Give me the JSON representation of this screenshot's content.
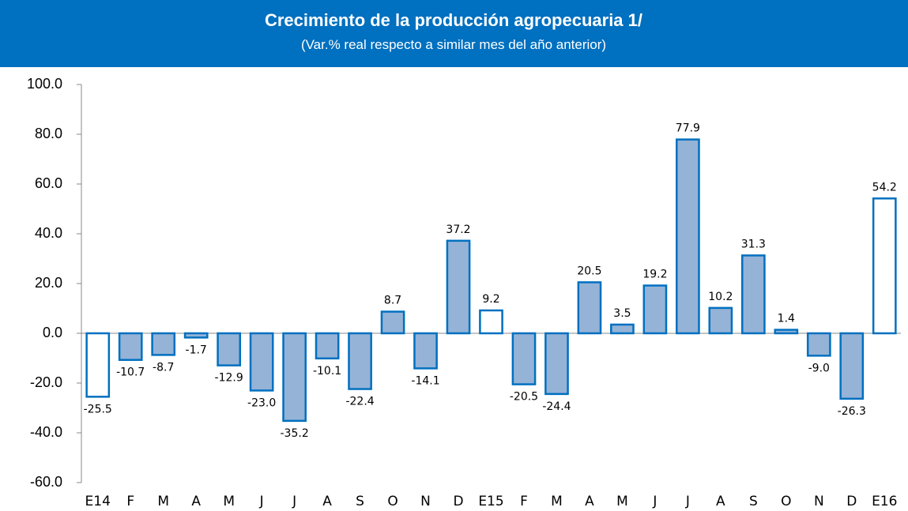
{
  "chart_data": {
    "type": "bar",
    "title": "Crecimiento de la producción agropecuaria 1/",
    "subtitle": "(Var.% real respecto a similar mes del año anterior)",
    "categories": [
      "E14",
      "F",
      "M",
      "A",
      "M",
      "J",
      "J",
      "A",
      "S",
      "O",
      "N",
      "D",
      "E15",
      "F",
      "M",
      "A",
      "M",
      "J",
      "J",
      "A",
      "S",
      "O",
      "N",
      "D",
      "E16"
    ],
    "values": [
      -25.5,
      -10.7,
      -8.7,
      -1.7,
      -12.9,
      -23.0,
      -35.2,
      -10.1,
      -22.4,
      8.7,
      -14.1,
      37.2,
      9.2,
      -20.5,
      -24.4,
      20.5,
      3.5,
      19.2,
      77.9,
      10.2,
      31.3,
      1.4,
      -9.0,
      -26.3,
      54.2
    ],
    "value_labels": [
      "-25.5",
      "-10.7",
      "-8.7",
      "-1.7",
      "-12.9",
      "-23.0",
      "-35.2",
      "-10.1",
      "-22.4",
      "8.7",
      "-14.1",
      "37.2",
      "9.2",
      "-20.5",
      "-24.4",
      "20.5",
      "3.5",
      "19.2",
      "77.9",
      "10.2",
      "31.3",
      "1.4",
      "-9.0",
      "-26.3",
      "54.2"
    ],
    "colors": [
      "#ffffff",
      "#95b3d7",
      "#95b3d7",
      "#95b3d7",
      "#95b3d7",
      "#95b3d7",
      "#95b3d7",
      "#95b3d7",
      "#95b3d7",
      "#95b3d7",
      "#95b3d7",
      "#95b3d7",
      "#ffffff",
      "#95b3d7",
      "#95b3d7",
      "#95b3d7",
      "#95b3d7",
      "#95b3d7",
      "#95b3d7",
      "#95b3d7",
      "#95b3d7",
      "#95b3d7",
      "#95b3d7",
      "#95b3d7",
      "#ffffff"
    ],
    "border_color": "#0070c0",
    "ylim": [
      -60,
      100
    ],
    "yticks": [
      {
        "value": -60,
        "label": "-60.0"
      },
      {
        "value": -40,
        "label": "-40.0"
      },
      {
        "value": -20,
        "label": "-20.0"
      },
      {
        "value": 0,
        "label": "0.0"
      },
      {
        "value": 20,
        "label": "20.0"
      },
      {
        "value": 40,
        "label": "40.0"
      },
      {
        "value": 60,
        "label": "60.0"
      },
      {
        "value": 80,
        "label": "80.0"
      },
      {
        "value": 100,
        "label": "100.0"
      }
    ]
  }
}
